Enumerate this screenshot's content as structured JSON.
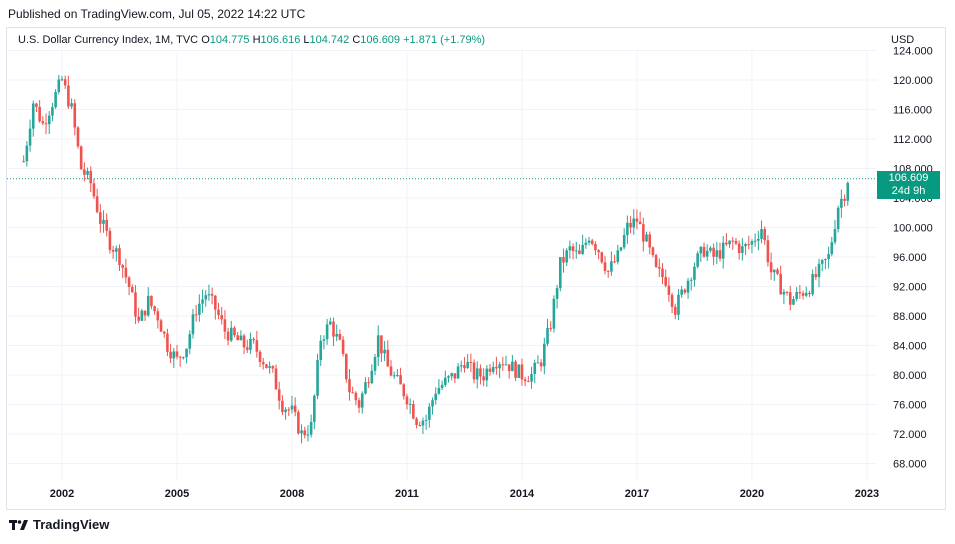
{
  "header": {
    "published": "Published on TradingView.com, Jul 05, 2022 14:22 UTC"
  },
  "legend": {
    "symbol": "U.S. Dollar Currency Index, 1M, TVC",
    "o_label": "O",
    "o": "104.775",
    "h_label": "H",
    "h": "106.616",
    "l_label": "L",
    "l": "104.742",
    "c_label": "C",
    "c": "106.609",
    "change": "+1.871 (+1.79%)"
  },
  "currency": "USD",
  "price_tag": {
    "value": "106.609",
    "countdown": "24d 9h"
  },
  "footer": {
    "brand": "TradingView"
  },
  "colors": {
    "up": "#26a69a",
    "down": "#ef5350",
    "accent": "#089981"
  },
  "chart_data": {
    "type": "candlestick",
    "title": "U.S. Dollar Currency Index, 1M, TVC",
    "y_ticks": [
      68,
      72,
      76,
      80,
      84,
      88,
      92,
      96,
      100,
      104,
      108,
      112,
      116,
      120,
      124
    ],
    "y_tick_labels": [
      "68.000",
      "72.000",
      "76.000",
      "80.000",
      "84.000",
      "88.000",
      "92.000",
      "96.000",
      "100.000",
      "104.000",
      "108.000",
      "112.000",
      "116.000",
      "120.000",
      "124.000"
    ],
    "x_ticks": [
      "2002",
      "2005",
      "2008",
      "2011",
      "2014",
      "2017",
      "2020",
      "2023"
    ],
    "ylim": [
      65,
      126
    ],
    "last_price": 106.609,
    "series": [
      {
        "x": "2001-01",
        "close": 109
      },
      {
        "x": "2001-04",
        "close": 117
      },
      {
        "x": "2001-07",
        "close": 114
      },
      {
        "x": "2001-10",
        "close": 117
      },
      {
        "x": "2002-01",
        "close": 120
      },
      {
        "x": "2002-04",
        "close": 116
      },
      {
        "x": "2002-07",
        "close": 108
      },
      {
        "x": "2002-10",
        "close": 106
      },
      {
        "x": "2003-01",
        "close": 101
      },
      {
        "x": "2003-04",
        "close": 98
      },
      {
        "x": "2003-07",
        "close": 96
      },
      {
        "x": "2003-10",
        "close": 92
      },
      {
        "x": "2004-01",
        "close": 87
      },
      {
        "x": "2004-04",
        "close": 90
      },
      {
        "x": "2004-07",
        "close": 88
      },
      {
        "x": "2004-10",
        "close": 84
      },
      {
        "x": "2005-01",
        "close": 82
      },
      {
        "x": "2005-04",
        "close": 84
      },
      {
        "x": "2005-07",
        "close": 89
      },
      {
        "x": "2005-10",
        "close": 91
      },
      {
        "x": "2006-01",
        "close": 89
      },
      {
        "x": "2006-04",
        "close": 86
      },
      {
        "x": "2006-07",
        "close": 85
      },
      {
        "x": "2006-10",
        "close": 84
      },
      {
        "x": "2007-01",
        "close": 84
      },
      {
        "x": "2007-04",
        "close": 82
      },
      {
        "x": "2007-07",
        "close": 80
      },
      {
        "x": "2007-10",
        "close": 76
      },
      {
        "x": "2008-01",
        "close": 75
      },
      {
        "x": "2008-04",
        "close": 72
      },
      {
        "x": "2008-07",
        "close": 73
      },
      {
        "x": "2008-10",
        "close": 85
      },
      {
        "x": "2009-01",
        "close": 87
      },
      {
        "x": "2009-04",
        "close": 84
      },
      {
        "x": "2009-07",
        "close": 78
      },
      {
        "x": "2009-10",
        "close": 76
      },
      {
        "x": "2010-01",
        "close": 80
      },
      {
        "x": "2010-04",
        "close": 85
      },
      {
        "x": "2010-07",
        "close": 81
      },
      {
        "x": "2010-10",
        "close": 79
      },
      {
        "x": "2011-01",
        "close": 77
      },
      {
        "x": "2011-04",
        "close": 74
      },
      {
        "x": "2011-07",
        "close": 74
      },
      {
        "x": "2011-10",
        "close": 78
      },
      {
        "x": "2012-01",
        "close": 79
      },
      {
        "x": "2012-04",
        "close": 80
      },
      {
        "x": "2012-07",
        "close": 82
      },
      {
        "x": "2012-10",
        "close": 80
      },
      {
        "x": "2013-01",
        "close": 80
      },
      {
        "x": "2013-04",
        "close": 82
      },
      {
        "x": "2013-07",
        "close": 82
      },
      {
        "x": "2013-10",
        "close": 81
      },
      {
        "x": "2014-01",
        "close": 80
      },
      {
        "x": "2014-04",
        "close": 80
      },
      {
        "x": "2014-07",
        "close": 82
      },
      {
        "x": "2014-10",
        "close": 87
      },
      {
        "x": "2015-01",
        "close": 95
      },
      {
        "x": "2015-04",
        "close": 97
      },
      {
        "x": "2015-07",
        "close": 96
      },
      {
        "x": "2015-10",
        "close": 99
      },
      {
        "x": "2016-01",
        "close": 97
      },
      {
        "x": "2016-04",
        "close": 94
      },
      {
        "x": "2016-07",
        "close": 96
      },
      {
        "x": "2016-10",
        "close": 100
      },
      {
        "x": "2017-01",
        "close": 101
      },
      {
        "x": "2017-04",
        "close": 98
      },
      {
        "x": "2017-07",
        "close": 94
      },
      {
        "x": "2017-10",
        "close": 93
      },
      {
        "x": "2018-01",
        "close": 89
      },
      {
        "x": "2018-04",
        "close": 92
      },
      {
        "x": "2018-07",
        "close": 95
      },
      {
        "x": "2018-10",
        "close": 97
      },
      {
        "x": "2019-01",
        "close": 96
      },
      {
        "x": "2019-04",
        "close": 97
      },
      {
        "x": "2019-07",
        "close": 98
      },
      {
        "x": "2019-10",
        "close": 97
      },
      {
        "x": "2020-01",
        "close": 98
      },
      {
        "x": "2020-04",
        "close": 100
      },
      {
        "x": "2020-07",
        "close": 94
      },
      {
        "x": "2020-10",
        "close": 92
      },
      {
        "x": "2021-01",
        "close": 90
      },
      {
        "x": "2021-04",
        "close": 91
      },
      {
        "x": "2021-07",
        "close": 92
      },
      {
        "x": "2021-10",
        "close": 94
      },
      {
        "x": "2022-01",
        "close": 96
      },
      {
        "x": "2022-04",
        "close": 103
      },
      {
        "x": "2022-06",
        "close": 104.7
      },
      {
        "x": "2022-07",
        "close": 106.6
      }
    ]
  }
}
